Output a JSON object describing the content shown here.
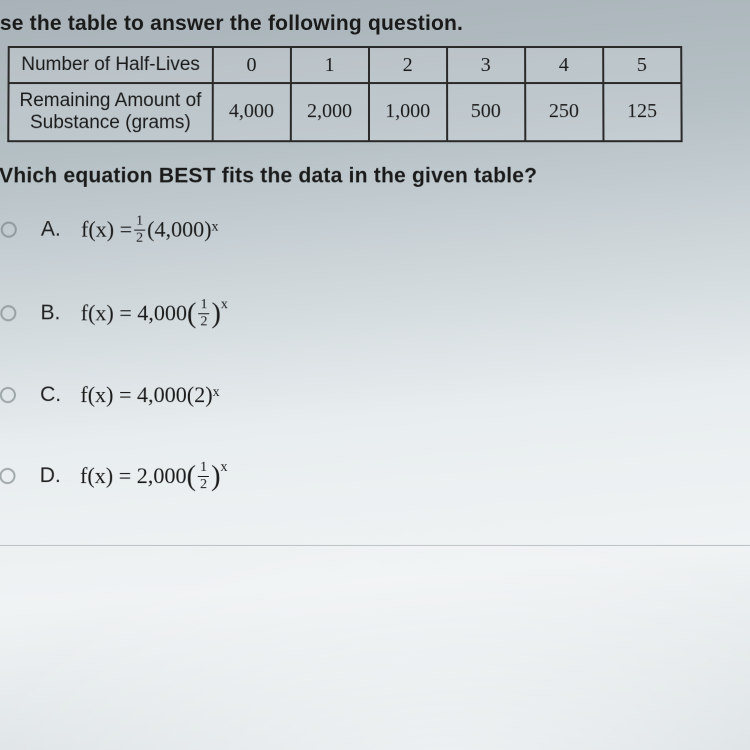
{
  "instruction": "se the table to answer the following question.",
  "table": {
    "row1_header": "Number of Half-Lives",
    "row2_header_line1": "Remaining Amount of",
    "row2_header_line2": "Substance (grams)",
    "half_lives": [
      "0",
      "1",
      "2",
      "3",
      "4",
      "5"
    ],
    "amounts": [
      "4,000",
      "2,000",
      "1,000",
      "500",
      "250",
      "125"
    ],
    "border_color": "#2a2a2a",
    "header_fontsize": 19,
    "cell_fontsize": 20
  },
  "question": "Vhich equation BEST fits the data in the given table?",
  "choices": {
    "A": {
      "letter": "A.",
      "prefix": "f(x) = ",
      "frac_num": "1",
      "frac_den": "2",
      "after_frac": "(4,000)",
      "exp": "x"
    },
    "B": {
      "letter": "B.",
      "prefix": "f(x) = 4,000",
      "frac_num": "1",
      "frac_den": "2",
      "exp": "x"
    },
    "C": {
      "letter": "C.",
      "text": "f(x) = 4,000(2)",
      "exp": "x"
    },
    "D": {
      "letter": "D.",
      "prefix": "f(x) = 2,000",
      "frac_num": "1",
      "frac_den": "2",
      "exp": "x"
    }
  },
  "colors": {
    "text": "#1a1a1a",
    "radio_border": "#6a7275",
    "divider": "#9aa4a8"
  }
}
